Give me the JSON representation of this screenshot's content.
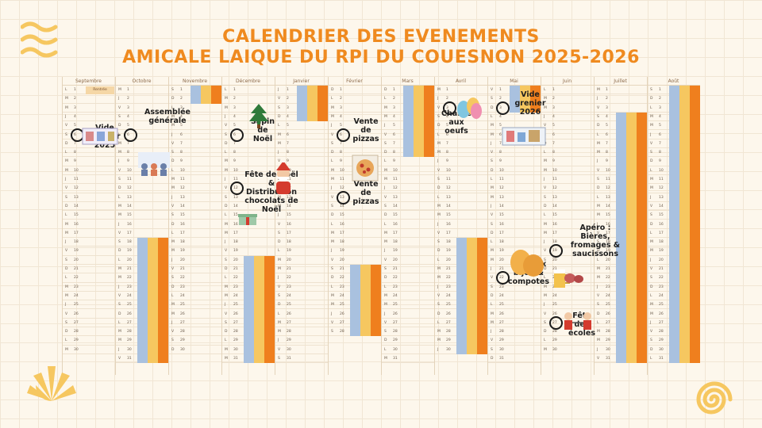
{
  "title": {
    "line1": "CALENDRIER DES EVENEMENTS",
    "line2": "AMICALE LAIQUE DU RPI DU COUESNON 2025-2026"
  },
  "months": [
    "Septembre",
    "Octobre",
    "Novembre",
    "Décembre",
    "Janvier",
    "Février",
    "Mars",
    "Avril",
    "Mai",
    "Juin",
    "Juillet",
    "Août"
  ],
  "rentree_label": "Rentrée",
  "events": [
    {
      "label": "Vide grenier 2025",
      "month": "Septembre",
      "day": 6
    },
    {
      "label": "Assemblée générale",
      "month": "Octobre",
      "day": 6
    },
    {
      "label": "Sapin de Noël",
      "month": "Décembre",
      "day": 6
    },
    {
      "label": "Fête de Noël & Distribution chocolats de Noël",
      "month": "Décembre",
      "day": 12
    },
    {
      "label": "Vente de pizzas",
      "month": "Février",
      "day": 6
    },
    {
      "label": "Vente de pizzas",
      "month": "Février",
      "day": 13
    },
    {
      "label": "Chasse aux oeufs",
      "month": "Avril",
      "day": 3
    },
    {
      "label": "Vide grenier 2026",
      "month": "Mai",
      "day": 3
    },
    {
      "label": "Gâteaux bijou & compotes",
      "month": "Mai",
      "day": 22
    },
    {
      "label": "Apéro : Bières, fromages & saucissons",
      "month": "Juin",
      "day": 19
    },
    {
      "label": "Fête des écoles",
      "month": "Juin",
      "day": 27
    }
  ],
  "colors": {
    "title": "#ef8a1f",
    "vacation_blue": "#a9c1df",
    "vacation_yellow": "#f6c760",
    "vacation_orange": "#ef7f1e",
    "background": "#fdf7ec"
  },
  "icons": [
    "christmas-tree-icon",
    "santa-icon",
    "pizza-icon",
    "easter-eggs-icon",
    "madeleine-icon",
    "beer-icon",
    "children-icon",
    "flea-market-icon",
    "meeting-icon"
  ]
}
